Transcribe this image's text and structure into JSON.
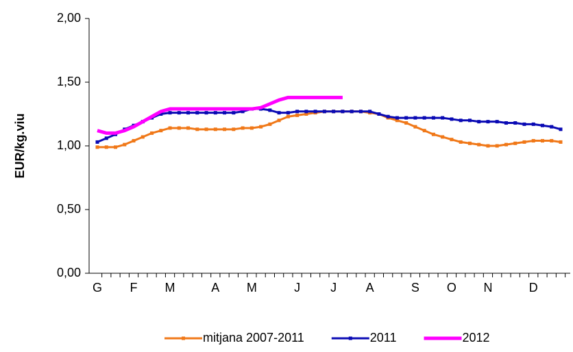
{
  "chart_data": {
    "type": "line",
    "y_label": "EUR/kg.viu",
    "categories": [
      "G",
      null,
      null,
      null,
      "F",
      null,
      null,
      null,
      "M",
      null,
      null,
      null,
      null,
      "A",
      null,
      null,
      null,
      "M",
      null,
      null,
      null,
      null,
      "J",
      null,
      null,
      null,
      "J",
      null,
      null,
      null,
      "A",
      null,
      null,
      null,
      null,
      "S",
      null,
      null,
      null,
      "O",
      null,
      null,
      null,
      "N",
      null,
      null,
      null,
      null,
      "D",
      null,
      null,
      null
    ],
    "series": [
      {
        "name": "mitjana 2007-2011",
        "color": "#f07818",
        "markers": true,
        "values": [
          0.99,
          0.99,
          0.99,
          1.01,
          1.04,
          1.07,
          1.1,
          1.12,
          1.14,
          1.14,
          1.14,
          1.13,
          1.13,
          1.13,
          1.13,
          1.13,
          1.14,
          1.14,
          1.15,
          1.17,
          1.2,
          1.23,
          1.24,
          1.25,
          1.26,
          1.27,
          1.27,
          1.27,
          1.27,
          1.27,
          1.26,
          1.25,
          1.22,
          1.2,
          1.18,
          1.15,
          1.12,
          1.09,
          1.07,
          1.05,
          1.03,
          1.02,
          1.01,
          1.0,
          1.0,
          1.01,
          1.02,
          1.03,
          1.04,
          1.04,
          1.04,
          1.03
        ]
      },
      {
        "name": "2011",
        "color": "#0a0ab4",
        "markers": true,
        "values": [
          1.03,
          1.06,
          1.09,
          1.13,
          1.16,
          1.19,
          1.22,
          1.25,
          1.26,
          1.26,
          1.26,
          1.26,
          1.26,
          1.26,
          1.26,
          1.26,
          1.27,
          1.29,
          1.29,
          1.28,
          1.26,
          1.26,
          1.27,
          1.27,
          1.27,
          1.27,
          1.27,
          1.27,
          1.27,
          1.27,
          1.27,
          1.25,
          1.23,
          1.22,
          1.22,
          1.22,
          1.22,
          1.22,
          1.22,
          1.21,
          1.2,
          1.2,
          1.19,
          1.19,
          1.19,
          1.18,
          1.18,
          1.17,
          1.17,
          1.16,
          1.15,
          1.13
        ]
      },
      {
        "name": "2012",
        "color": "#ff00ff",
        "markers": false,
        "values": [
          1.12,
          1.1,
          1.1,
          1.12,
          1.15,
          1.19,
          1.23,
          1.27,
          1.29,
          1.29,
          1.29,
          1.29,
          1.29,
          1.29,
          1.29,
          1.29,
          1.29,
          1.29,
          1.3,
          1.33,
          1.36,
          1.38,
          1.38,
          1.38,
          1.38,
          1.38,
          1.38,
          1.38,
          null,
          null,
          null,
          null,
          null,
          null,
          null,
          null,
          null,
          null,
          null,
          null,
          null,
          null,
          null,
          null,
          null,
          null,
          null,
          null,
          null,
          null,
          null,
          null
        ]
      }
    ],
    "ylim": [
      0,
      2
    ],
    "yticks": [
      {
        "value": 0,
        "label": "0,00"
      },
      {
        "value": 0.5,
        "label": "0,50"
      },
      {
        "value": 1,
        "label": "1,00"
      },
      {
        "value": 1.5,
        "label": "1,50"
      },
      {
        "value": 2,
        "label": "2,00"
      }
    ],
    "grid": false,
    "legend": "bottom"
  }
}
